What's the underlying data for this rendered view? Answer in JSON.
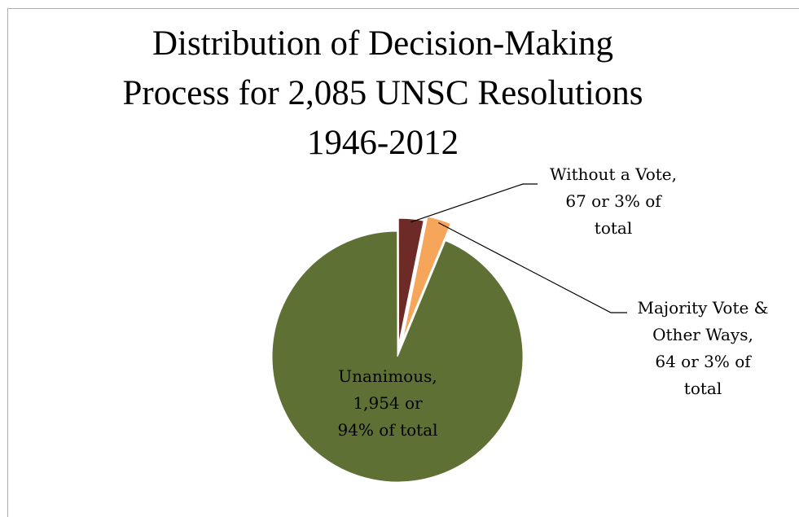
{
  "chart_data": {
    "type": "pie",
    "title": "Distribution of Decision-Making Process for 2,085 UNSC Resolutions 1946-2012",
    "title_lines": [
      "Distribution of Decision-Making",
      "Process for 2,085 UNSC Resolutions",
      "1946-2012"
    ],
    "exploded": true,
    "slices": [
      {
        "name": "Unanimous",
        "value": 1954,
        "percent": 94,
        "color": "#5f7035",
        "label_lines": [
          "Unanimous,",
          "1,954 or",
          "94% of total"
        ]
      },
      {
        "name": "Without a Vote",
        "value": 67,
        "percent": 3,
        "color": "#6e2a26",
        "label_lines": [
          "Without a Vote,",
          "67 or 3% of",
          "total"
        ]
      },
      {
        "name": "Majority Vote & Other Ways",
        "value": 64,
        "percent": 3,
        "color": "#f6a65a",
        "label_lines": [
          "Majority Vote &",
          "Other Ways,",
          "64 or 3% of",
          "total"
        ]
      }
    ],
    "legend": "none"
  }
}
